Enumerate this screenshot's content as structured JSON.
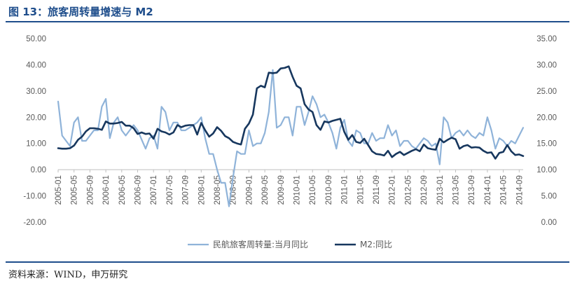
{
  "figure": {
    "title": "图 13：旅客周转量增速与 M2",
    "source": "资料来源：WIND，申万研究"
  },
  "colors": {
    "accent": "#1f4e8c",
    "series_light": "#8fb3d9",
    "series_dark": "#17375e"
  },
  "chart_data": {
    "type": "line",
    "x_tick_labels": [
      "2005-01",
      "2005-05",
      "2005-09",
      "2006-01",
      "2006-05",
      "2006-09",
      "2007-01",
      "2007-05",
      "2007-09",
      "2008-01",
      "2008-05",
      "2008-09",
      "2009-01",
      "2009-05",
      "2009-09",
      "2010-01",
      "2010-05",
      "2010-09",
      "2011-01",
      "2011-05",
      "2011-09",
      "2012-01",
      "2012-05",
      "2012-09",
      "2013-01",
      "2013-05",
      "2013-09",
      "2014-01",
      "2014-05",
      "2014-09"
    ],
    "x_start": "2005-01",
    "x_end": "2014-10",
    "left_axis": {
      "min": -20,
      "max": 50,
      "ticks": [
        "-20.00",
        "-10.00",
        "0.00",
        "10.00",
        "20.00",
        "30.00",
        "40.00",
        "50.00"
      ]
    },
    "right_axis": {
      "min": 0,
      "max": 35,
      "ticks": [
        "0.00",
        "5.00",
        "10.00",
        "15.00",
        "20.00",
        "25.00",
        "30.00",
        "35.00"
      ]
    },
    "legend_position": "bottom",
    "grid": false,
    "series": [
      {
        "name": "民航旅客周转量:当月同比",
        "axis": "left",
        "color": "#8fb3d9",
        "points": [
          [
            "2005-01",
            26
          ],
          [
            "2005-02",
            13
          ],
          [
            "2005-04",
            9
          ],
          [
            "2005-05",
            18
          ],
          [
            "2005-06",
            20
          ],
          [
            "2005-07",
            11
          ],
          [
            "2005-08",
            11
          ],
          [
            "2005-10",
            15
          ],
          [
            "2005-11",
            15
          ],
          [
            "2005-12",
            24
          ],
          [
            "2006-01",
            27
          ],
          [
            "2006-02",
            12
          ],
          [
            "2006-03",
            18
          ],
          [
            "2006-04",
            20
          ],
          [
            "2006-05",
            15
          ],
          [
            "2006-06",
            13
          ],
          [
            "2006-08",
            17
          ],
          [
            "2006-09",
            15
          ],
          [
            "2006-11",
            8
          ],
          [
            "2006-12",
            12
          ],
          [
            "2007-01",
            13
          ],
          [
            "2007-02",
            8
          ],
          [
            "2007-03",
            24
          ],
          [
            "2007-04",
            22
          ],
          [
            "2007-05",
            15
          ],
          [
            "2007-06",
            18
          ],
          [
            "2007-07",
            18
          ],
          [
            "2007-08",
            15
          ],
          [
            "2007-09",
            15
          ],
          [
            "2007-10",
            16
          ],
          [
            "2007-12",
            18
          ],
          [
            "2008-01",
            20
          ],
          [
            "2008-02",
            12
          ],
          [
            "2008-03",
            6
          ],
          [
            "2008-04",
            6
          ],
          [
            "2008-05",
            0
          ],
          [
            "2008-06",
            -5
          ],
          [
            "2008-07",
            -5
          ],
          [
            "2008-08",
            -14
          ],
          [
            "2008-09",
            -3
          ],
          [
            "2008-10",
            7
          ],
          [
            "2008-11",
            6
          ],
          [
            "2008-12",
            6
          ],
          [
            "2009-01",
            15
          ],
          [
            "2009-02",
            9
          ],
          [
            "2009-03",
            10
          ],
          [
            "2009-04",
            10
          ],
          [
            "2009-05",
            14
          ],
          [
            "2009-06",
            22
          ],
          [
            "2009-07",
            38
          ],
          [
            "2009-08",
            16
          ],
          [
            "2009-09",
            17
          ],
          [
            "2009-10",
            20
          ],
          [
            "2009-11",
            20
          ],
          [
            "2009-12",
            13
          ],
          [
            "2010-01",
            24
          ],
          [
            "2010-02",
            24
          ],
          [
            "2010-03",
            17
          ],
          [
            "2010-04",
            22
          ],
          [
            "2010-05",
            28
          ],
          [
            "2010-06",
            25
          ],
          [
            "2010-07",
            20
          ],
          [
            "2010-08",
            21
          ],
          [
            "2010-09",
            18
          ],
          [
            "2010-10",
            14
          ],
          [
            "2010-11",
            8
          ],
          [
            "2010-12",
            16
          ],
          [
            "2011-01",
            19
          ],
          [
            "2011-02",
            11
          ],
          [
            "2011-03",
            9
          ],
          [
            "2011-04",
            15
          ],
          [
            "2011-05",
            14
          ],
          [
            "2011-06",
            10
          ],
          [
            "2011-07",
            10
          ],
          [
            "2011-08",
            14
          ],
          [
            "2011-09",
            11
          ],
          [
            "2011-10",
            12
          ],
          [
            "2011-11",
            12
          ],
          [
            "2011-12",
            17
          ],
          [
            "2012-01",
            13
          ],
          [
            "2012-02",
            15
          ],
          [
            "2012-03",
            9
          ],
          [
            "2012-04",
            11
          ],
          [
            "2012-05",
            11
          ],
          [
            "2012-06",
            9
          ],
          [
            "2012-07",
            8
          ],
          [
            "2012-08",
            10
          ],
          [
            "2012-09",
            12
          ],
          [
            "2012-10",
            11
          ],
          [
            "2012-11",
            9
          ],
          [
            "2012-12",
            10
          ],
          [
            "2013-01",
            2
          ],
          [
            "2013-02",
            20
          ],
          [
            "2013-03",
            18
          ],
          [
            "2013-04",
            12
          ],
          [
            "2013-05",
            14
          ],
          [
            "2013-06",
            15
          ],
          [
            "2013-07",
            13
          ],
          [
            "2013-08",
            15
          ],
          [
            "2013-09",
            13
          ],
          [
            "2013-10",
            12
          ],
          [
            "2013-11",
            14
          ],
          [
            "2013-12",
            13
          ],
          [
            "2014-01",
            20
          ],
          [
            "2014-02",
            15
          ],
          [
            "2014-03",
            8
          ],
          [
            "2014-04",
            12
          ],
          [
            "2014-05",
            11
          ],
          [
            "2014-06",
            9
          ],
          [
            "2014-07",
            11
          ],
          [
            "2014-08",
            10
          ],
          [
            "2014-09",
            13
          ],
          [
            "2014-10",
            16
          ]
        ]
      },
      {
        "name": "M2:同比",
        "axis": "right",
        "color": "#17375e",
        "points": [
          [
            "2005-01",
            14.1
          ],
          [
            "2005-02",
            14
          ],
          [
            "2005-03",
            14
          ],
          [
            "2005-04",
            14.1
          ],
          [
            "2005-05",
            14.6
          ],
          [
            "2005-06",
            15.7
          ],
          [
            "2005-07",
            16.3
          ],
          [
            "2005-08",
            17.3
          ],
          [
            "2005-09",
            17.9
          ],
          [
            "2005-10",
            17.9
          ],
          [
            "2005-11",
            17.8
          ],
          [
            "2005-12",
            17.6
          ],
          [
            "2006-01",
            19.2
          ],
          [
            "2006-02",
            18.8
          ],
          [
            "2006-03",
            18.8
          ],
          [
            "2006-04",
            18.9
          ],
          [
            "2006-05",
            19.1
          ],
          [
            "2006-06",
            18.4
          ],
          [
            "2006-07",
            18.4
          ],
          [
            "2006-08",
            17.9
          ],
          [
            "2006-09",
            16.8
          ],
          [
            "2006-10",
            17.1
          ],
          [
            "2006-11",
            16.8
          ],
          [
            "2006-12",
            16.9
          ],
          [
            "2007-01",
            15.9
          ],
          [
            "2007-02",
            17.8
          ],
          [
            "2007-03",
            17.3
          ],
          [
            "2007-04",
            17.1
          ],
          [
            "2007-05",
            16.7
          ],
          [
            "2007-06",
            17.1
          ],
          [
            "2007-07",
            18.5
          ],
          [
            "2007-08",
            18.1
          ],
          [
            "2007-09",
            18.4
          ],
          [
            "2007-10",
            18.5
          ],
          [
            "2007-11",
            18.5
          ],
          [
            "2007-12",
            16.7
          ],
          [
            "2008-01",
            18.9
          ],
          [
            "2008-02",
            17.5
          ],
          [
            "2008-03",
            16.3
          ],
          [
            "2008-04",
            16.9
          ],
          [
            "2008-05",
            18.1
          ],
          [
            "2008-06",
            17.4
          ],
          [
            "2008-07",
            16.4
          ],
          [
            "2008-08",
            16
          ],
          [
            "2008-09",
            15.3
          ],
          [
            "2008-10",
            15
          ],
          [
            "2008-11",
            14.8
          ],
          [
            "2008-12",
            17.8
          ],
          [
            "2009-01",
            18.8
          ],
          [
            "2009-02",
            20.5
          ],
          [
            "2009-03",
            25.5
          ],
          [
            "2009-04",
            26
          ],
          [
            "2009-05",
            25.7
          ],
          [
            "2009-06",
            28.5
          ],
          [
            "2009-07",
            28.4
          ],
          [
            "2009-08",
            28.5
          ],
          [
            "2009-09",
            29.3
          ],
          [
            "2009-10",
            29.4
          ],
          [
            "2009-11",
            29.7
          ],
          [
            "2009-12",
            27.7
          ],
          [
            "2010-01",
            26
          ],
          [
            "2010-02",
            25.5
          ],
          [
            "2010-03",
            22.5
          ],
          [
            "2010-04",
            21.5
          ],
          [
            "2010-05",
            21
          ],
          [
            "2010-06",
            18.5
          ],
          [
            "2010-07",
            17.6
          ],
          [
            "2010-08",
            19.2
          ],
          [
            "2010-09",
            19
          ],
          [
            "2010-10",
            19.3
          ],
          [
            "2010-11",
            19.5
          ],
          [
            "2010-12",
            19.7
          ],
          [
            "2011-01",
            17.2
          ],
          [
            "2011-02",
            15.7
          ],
          [
            "2011-03",
            16.6
          ],
          [
            "2011-04",
            15.3
          ],
          [
            "2011-05",
            15.1
          ],
          [
            "2011-06",
            15.9
          ],
          [
            "2011-07",
            14.7
          ],
          [
            "2011-08",
            13.5
          ],
          [
            "2011-09",
            13
          ],
          [
            "2011-10",
            12.9
          ],
          [
            "2011-11",
            12.7
          ],
          [
            "2011-12",
            13.6
          ],
          [
            "2012-01",
            12.4
          ],
          [
            "2012-02",
            13
          ],
          [
            "2012-03",
            13.4
          ],
          [
            "2012-04",
            12.8
          ],
          [
            "2012-05",
            13.2
          ],
          [
            "2012-06",
            13.6
          ],
          [
            "2012-07",
            13.9
          ],
          [
            "2012-08",
            13.5
          ],
          [
            "2012-09",
            14.8
          ],
          [
            "2012-10",
            14.1
          ],
          [
            "2012-11",
            13.9
          ],
          [
            "2012-12",
            13.8
          ],
          [
            "2013-01",
            15.9
          ],
          [
            "2013-02",
            15.2
          ],
          [
            "2013-03",
            15.7
          ],
          [
            "2013-04",
            16.1
          ],
          [
            "2013-05",
            15.8
          ],
          [
            "2013-06",
            14
          ],
          [
            "2013-07",
            14.5
          ],
          [
            "2013-08",
            14.7
          ],
          [
            "2013-09",
            14.2
          ],
          [
            "2013-10",
            14.3
          ],
          [
            "2013-11",
            14.2
          ],
          [
            "2013-12",
            13.6
          ],
          [
            "2014-01",
            13.2
          ],
          [
            "2014-02",
            13.3
          ],
          [
            "2014-03",
            12.1
          ],
          [
            "2014-04",
            13.2
          ],
          [
            "2014-05",
            13.4
          ],
          [
            "2014-06",
            14.7
          ],
          [
            "2014-07",
            13.5
          ],
          [
            "2014-08",
            12.8
          ],
          [
            "2014-09",
            12.9
          ],
          [
            "2014-10",
            12.6
          ]
        ]
      }
    ]
  }
}
